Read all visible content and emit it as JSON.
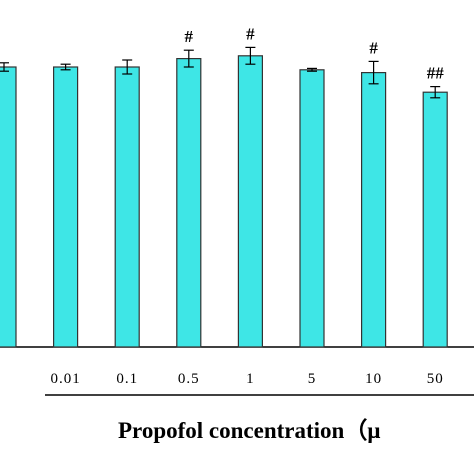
{
  "chart_data": {
    "type": "bar",
    "x_label": "Propofol concentration（μ",
    "categories": [
      null,
      "0.01",
      "0.1",
      "0.5",
      "1",
      "5",
      "10",
      "50"
    ],
    "values": [
      100,
      100,
      100,
      103,
      104,
      99,
      98,
      91
    ],
    "errors": [
      1.5,
      1,
      2.5,
      3,
      3,
      0.5,
      4,
      2
    ],
    "annotations": [
      null,
      null,
      null,
      "#",
      "#",
      null,
      "#",
      "##"
    ],
    "color": "#3ee6e6",
    "ylim": [
      0,
      120
    ]
  }
}
